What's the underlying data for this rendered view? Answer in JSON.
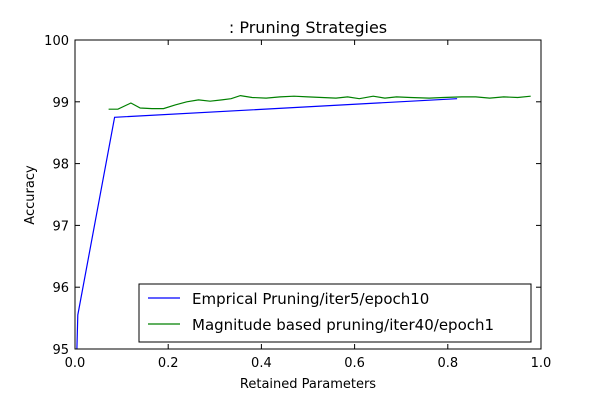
{
  "chart_data": {
    "type": "line",
    "title": ": Pruning Strategies",
    "xlabel": "Retained Parameters",
    "ylabel": "Accuracy",
    "xlim": [
      0.0,
      1.0
    ],
    "ylim": [
      95,
      100
    ],
    "xticks": [
      0.0,
      0.2,
      0.4,
      0.6,
      0.8,
      1.0
    ],
    "xtick_labels": [
      "0.0",
      "0.2",
      "0.4",
      "0.6",
      "0.8",
      "1.0"
    ],
    "yticks": [
      95,
      96,
      97,
      98,
      99,
      100
    ],
    "ytick_labels": [
      "95",
      "96",
      "97",
      "98",
      "99",
      "100"
    ],
    "legend_position": "lower-right",
    "grid": false,
    "series": [
      {
        "name": "Emprical Pruning/iter5/epoch10",
        "color": "#0000ff",
        "x": [
          0.004,
          0.006,
          0.085,
          0.82
        ],
        "y": [
          95.0,
          95.55,
          98.75,
          99.05
        ]
      },
      {
        "name": "Magnitude based pruning/iter40/epoch1",
        "color": "#008000",
        "x": [
          0.072,
          0.092,
          0.12,
          0.14,
          0.165,
          0.19,
          0.215,
          0.24,
          0.265,
          0.29,
          0.315,
          0.335,
          0.355,
          0.38,
          0.41,
          0.44,
          0.47,
          0.5,
          0.53,
          0.56,
          0.585,
          0.61,
          0.64,
          0.665,
          0.69,
          0.72,
          0.76,
          0.79,
          0.83,
          0.86,
          0.89,
          0.92,
          0.95,
          0.978
        ],
        "y": [
          98.88,
          98.88,
          98.98,
          98.9,
          98.89,
          98.89,
          98.95,
          99.0,
          99.03,
          99.01,
          99.03,
          99.05,
          99.1,
          99.07,
          99.06,
          99.08,
          99.09,
          99.08,
          99.07,
          99.06,
          99.08,
          99.05,
          99.09,
          99.06,
          99.08,
          99.07,
          99.06,
          99.07,
          99.08,
          99.08,
          99.06,
          99.08,
          99.07,
          99.09
        ]
      }
    ]
  }
}
